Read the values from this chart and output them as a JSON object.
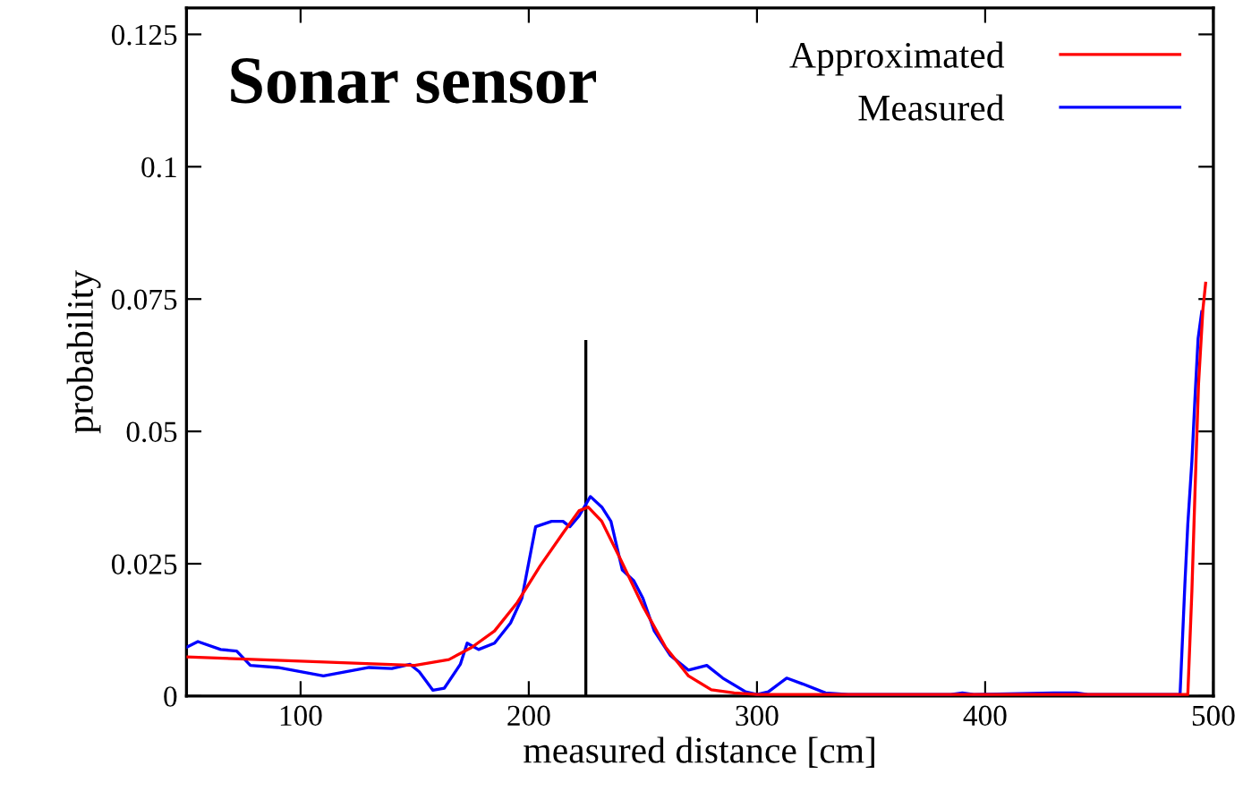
{
  "chart_data": {
    "type": "line",
    "title": "Sonar sensor",
    "xlabel": "measured distance [cm]",
    "ylabel": "probability",
    "xlim": [
      50,
      500
    ],
    "ylim": [
      0,
      0.13
    ],
    "xticks": [
      100,
      200,
      300,
      400,
      500
    ],
    "yticks": [
      0,
      0.025,
      0.05,
      0.075,
      0.1,
      0.125
    ],
    "grid": false,
    "legend": "top right",
    "marker": "none",
    "line_style": "solid",
    "series": [
      {
        "name": "Approximated",
        "color": "#ff0000",
        "x": [
          50,
          100,
          150,
          165,
          175,
          185,
          195,
          205,
          215,
          222,
          226,
          232,
          240,
          250,
          260,
          270,
          280,
          290,
          300,
          350,
          400,
          450,
          488.8,
          490.6,
          491.9,
          493.5,
          495.4,
          496.6
        ],
        "values": [
          0.0074,
          0.0066,
          0.0058,
          0.0069,
          0.0092,
          0.0123,
          0.0177,
          0.0246,
          0.0308,
          0.035,
          0.0357,
          0.033,
          0.026,
          0.017,
          0.0092,
          0.0038,
          0.0012,
          0.0006,
          0.0003,
          0.0003,
          0.0003,
          0.0003,
          0.0003,
          0.02,
          0.038,
          0.059,
          0.073,
          0.078
        ]
      },
      {
        "name": "Measured",
        "color": "#0000ff",
        "x": [
          50,
          55,
          65,
          72,
          78,
          90,
          100,
          110,
          120,
          130,
          140,
          148,
          152,
          158,
          163,
          170,
          173,
          178,
          185,
          192,
          197,
          203,
          210,
          215,
          218,
          222,
          227,
          232,
          236,
          241,
          246,
          250,
          255,
          262,
          270,
          278,
          285,
          295,
          300,
          305,
          313,
          320,
          330,
          340,
          385,
          390,
          395,
          430,
          440,
          445,
          485.4,
          487.5,
          488.8,
          490.6,
          491.9,
          493.3,
          494.9
        ],
        "values": [
          0.0092,
          0.0103,
          0.0088,
          0.0085,
          0.0058,
          0.0054,
          0.0046,
          0.0038,
          0.0046,
          0.0054,
          0.0052,
          0.006,
          0.0046,
          0.0011,
          0.0015,
          0.006,
          0.01,
          0.0088,
          0.01,
          0.0138,
          0.0185,
          0.032,
          0.033,
          0.033,
          0.032,
          0.034,
          0.0377,
          0.0357,
          0.033,
          0.0238,
          0.0218,
          0.0185,
          0.0123,
          0.0077,
          0.0049,
          0.0058,
          0.0034,
          0.0008,
          0.0003,
          0.0008,
          0.0034,
          0.0023,
          0.0006,
          0.0003,
          0.0003,
          0.0006,
          0.0003,
          0.0006,
          0.0006,
          0.0003,
          0.0003,
          0.021,
          0.0325,
          0.0445,
          0.056,
          0.0675,
          0.0726
        ]
      },
      {
        "color": "#000000",
        "x": [
          225,
          225
        ],
        "values": [
          0,
          0.067
        ]
      }
    ]
  }
}
